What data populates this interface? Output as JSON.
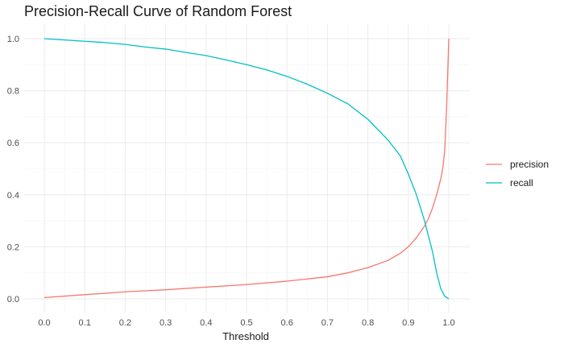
{
  "chart_data": {
    "type": "line",
    "title": "Precision-Recall Curve of Random Forest",
    "xlabel": "Threshold",
    "ylabel": "",
    "xlim": [
      0.0,
      1.0
    ],
    "ylim": [
      0.0,
      1.0
    ],
    "xticks": [
      "0.0",
      "0.1",
      "0.2",
      "0.3",
      "0.4",
      "0.5",
      "0.6",
      "0.7",
      "0.8",
      "0.9",
      "1.0"
    ],
    "yticks": [
      "0.0",
      "0.2",
      "0.4",
      "0.6",
      "0.8",
      "1.0"
    ],
    "grid": true,
    "legend_position": "right",
    "series": [
      {
        "name": "precision",
        "color": "#F8766D",
        "x": [
          0.0,
          0.1,
          0.2,
          0.3,
          0.4,
          0.5,
          0.6,
          0.7,
          0.75,
          0.8,
          0.85,
          0.88,
          0.9,
          0.92,
          0.94,
          0.95,
          0.96,
          0.97,
          0.98,
          0.985,
          0.99,
          0.995,
          1.0
        ],
        "y": [
          0.005,
          0.016,
          0.027,
          0.035,
          0.045,
          0.055,
          0.068,
          0.085,
          0.1,
          0.12,
          0.148,
          0.175,
          0.2,
          0.235,
          0.28,
          0.31,
          0.35,
          0.4,
          0.46,
          0.5,
          0.57,
          0.75,
          1.0
        ]
      },
      {
        "name": "recall",
        "color": "#00BFC4",
        "x": [
          0.0,
          0.05,
          0.1,
          0.15,
          0.2,
          0.25,
          0.3,
          0.35,
          0.4,
          0.45,
          0.5,
          0.55,
          0.6,
          0.65,
          0.7,
          0.75,
          0.8,
          0.85,
          0.88,
          0.9,
          0.92,
          0.94,
          0.96,
          0.97,
          0.98,
          0.99,
          1.0
        ],
        "y": [
          1.0,
          0.995,
          0.99,
          0.985,
          0.978,
          0.968,
          0.96,
          0.947,
          0.935,
          0.918,
          0.9,
          0.88,
          0.855,
          0.825,
          0.79,
          0.75,
          0.69,
          0.61,
          0.55,
          0.48,
          0.4,
          0.3,
          0.18,
          0.1,
          0.04,
          0.01,
          0.0
        ]
      }
    ]
  }
}
